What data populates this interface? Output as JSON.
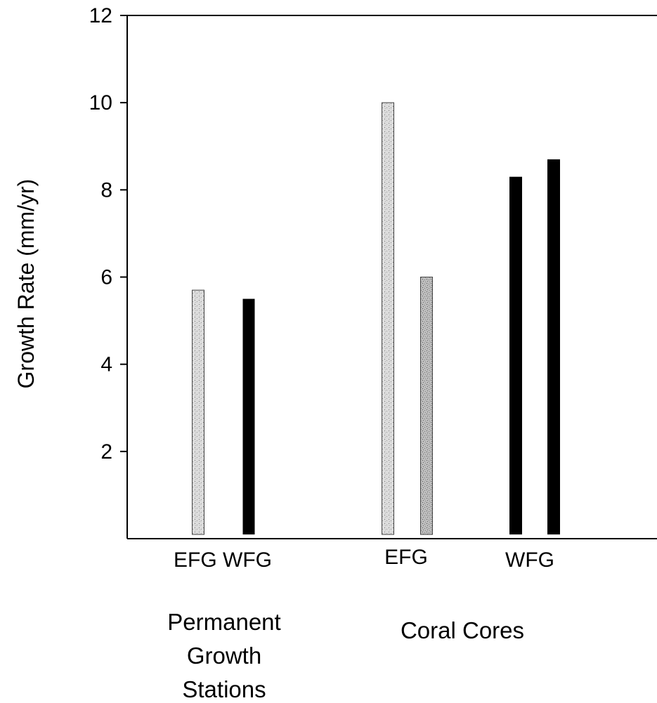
{
  "chart_data": {
    "type": "bar",
    "ylabel": "Growth Rate (mm/yr)",
    "ylim": [
      0,
      12
    ],
    "yticks": [
      {
        "value": 2,
        "label": "2"
      },
      {
        "value": 4,
        "label": "4"
      },
      {
        "value": 6,
        "label": "6"
      },
      {
        "value": 8,
        "label": "8"
      },
      {
        "value": 10,
        "label": "10"
      },
      {
        "value": 12,
        "label": "12"
      }
    ],
    "grid": false,
    "legend": "none",
    "category_labels": [
      {
        "text": "EFG WFG",
        "group": "permanent"
      },
      {
        "text": "EFG",
        "group": "coral-efg"
      },
      {
        "text": "WFG",
        "group": "coral-wfg"
      }
    ],
    "group_labels": [
      {
        "lines": [
          "Permanent",
          "Growth",
          "Stations"
        ]
      },
      {
        "lines": [
          "Coral Cores"
        ]
      }
    ],
    "bars": [
      {
        "group": "Permanent Growth Stations",
        "category": "EFG",
        "value": 5.7,
        "fill": "light"
      },
      {
        "group": "Permanent Growth Stations",
        "category": "WFG",
        "value": 5.5,
        "fill": "dark"
      },
      {
        "group": "Coral Cores",
        "category": "EFG",
        "value": 10.0,
        "fill": "light"
      },
      {
        "group": "Coral Cores",
        "category": "EFG",
        "value": 6.0,
        "fill": "medium"
      },
      {
        "group": "Coral Cores",
        "category": "WFG",
        "value": 8.3,
        "fill": "dark"
      },
      {
        "group": "Coral Cores",
        "category": "WFG",
        "value": 8.7,
        "fill": "dark"
      }
    ],
    "colors": {
      "light": "#d9d9d9",
      "medium": "#b8b8b8",
      "dark": "#000000"
    }
  }
}
